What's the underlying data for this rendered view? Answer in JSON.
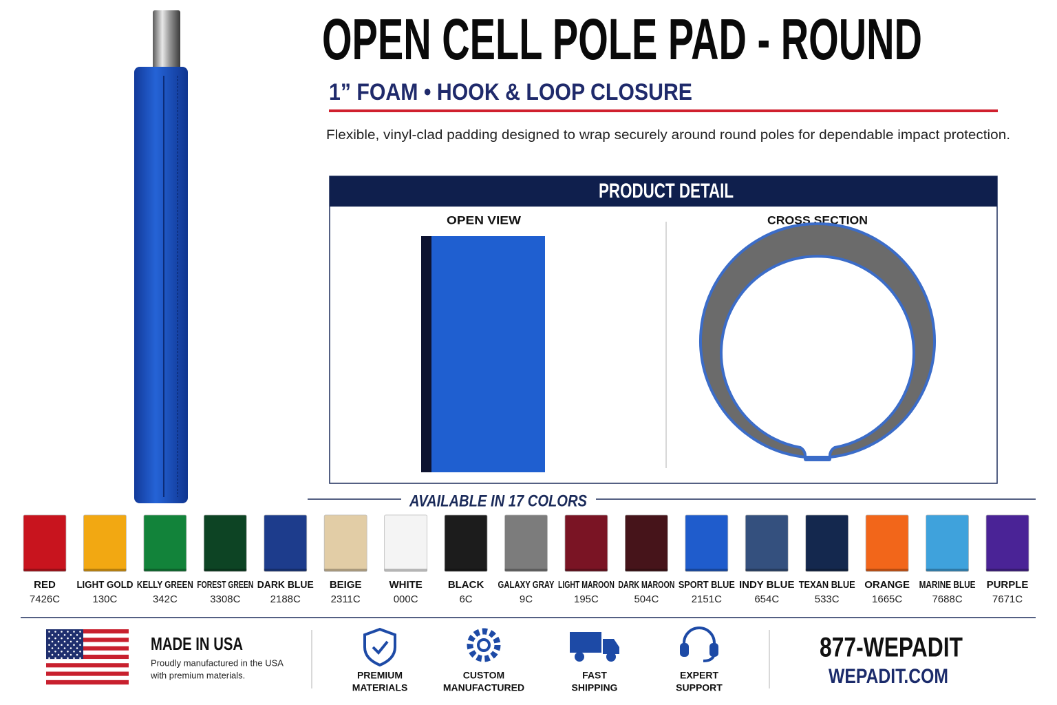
{
  "header": {
    "title": "OPEN CELL POLE PAD - ROUND",
    "subtitle": "1” FOAM  •  HOOK & LOOP CLOSURE",
    "description": "Flexible, vinyl-clad padding designed to wrap securely around round poles for dependable impact protection."
  },
  "detail": {
    "title": "PRODUCT DETAIL",
    "open_view": "OPEN VIEW",
    "cross_section": "CROSS SECTION"
  },
  "colors": {
    "title": "AVAILABLE IN 17 COLORS",
    "items": [
      {
        "name": "RED",
        "code": "7426C",
        "color": "#c8141e"
      },
      {
        "name": "LIGHT GOLD",
        "code": "130C",
        "color": "#f2a812"
      },
      {
        "name": "KELLY GREEN",
        "code": "342C",
        "color": "#12833a"
      },
      {
        "name": "FOREST GREEN",
        "code": "3308C",
        "color": "#0d4424"
      },
      {
        "name": "DARK BLUE",
        "code": "2188C",
        "color": "#1d3c8c"
      },
      {
        "name": "BEIGE",
        "code": "2311C",
        "color": "#e2cda6"
      },
      {
        "name": "WHITE",
        "code": "000C",
        "color": "#f4f4f4"
      },
      {
        "name": "BLACK",
        "code": "6C",
        "color": "#1c1c1c"
      },
      {
        "name": "GALAXY GRAY",
        "code": "9C",
        "color": "#7c7c7c"
      },
      {
        "name": "LIGHT MAROON",
        "code": "195C",
        "color": "#7a1424"
      },
      {
        "name": "DARK MAROON",
        "code": "504C",
        "color": "#46141a"
      },
      {
        "name": "SPORT BLUE",
        "code": "2151C",
        "color": "#1f5ccc"
      },
      {
        "name": "INDY BLUE",
        "code": "654C",
        "color": "#34507e"
      },
      {
        "name": "TEXAN BLUE",
        "code": "533C",
        "color": "#14284e"
      },
      {
        "name": "ORANGE",
        "code": "1665C",
        "color": "#f2661a"
      },
      {
        "name": "MARINE BLUE",
        "code": "7688C",
        "color": "#3fa2dc"
      },
      {
        "name": "PURPLE",
        "code": "7671C",
        "color": "#4a2396"
      }
    ]
  },
  "footer": {
    "made_title": "MADE IN USA",
    "made_text": [
      "Proudly manufactured in the USA",
      "with premium materials."
    ],
    "features": [
      [
        "PREMIUM",
        "MATERIALS"
      ],
      [
        "CUSTOM",
        "MANUFACTURED"
      ],
      [
        "FAST",
        "SHIPPING"
      ],
      [
        "EXPERT",
        "SUPPORT"
      ]
    ],
    "phone": "877-WEPADIT",
    "website": "WEPADIT.COM"
  }
}
